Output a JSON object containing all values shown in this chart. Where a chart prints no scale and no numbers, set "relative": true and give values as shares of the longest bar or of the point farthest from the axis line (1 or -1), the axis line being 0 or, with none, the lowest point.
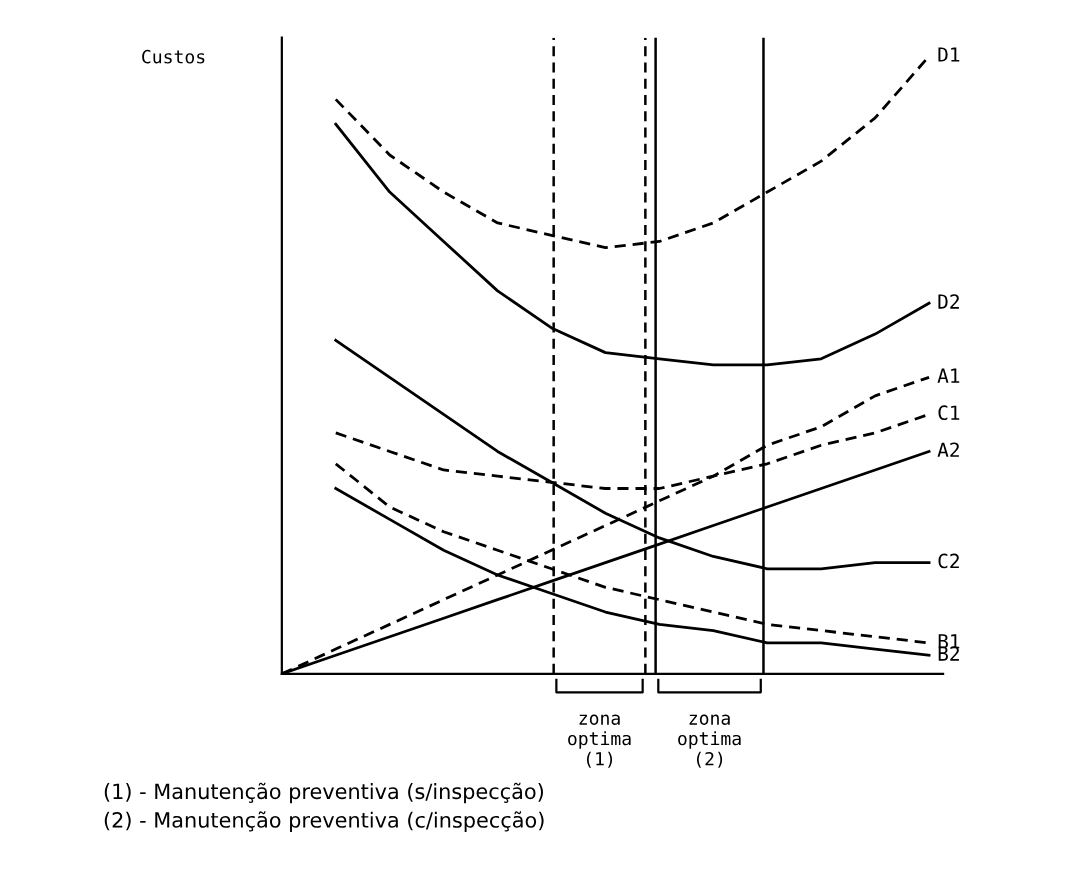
{
  "chart_data": {
    "type": "line",
    "relative": true,
    "ylabel": "Custos",
    "legend": false,
    "grid": false,
    "categories": [
      null,
      null,
      null,
      null,
      null,
      null,
      null,
      null,
      null,
      null,
      null,
      null,
      null
    ],
    "series": [
      {
        "name": "D1",
        "color": "#000000",
        "line_style": "dashed",
        "values": [
          null,
          0.93,
          0.84,
          0.78,
          0.73,
          0.71,
          0.69,
          0.7,
          0.73,
          0.78,
          0.83,
          0.9,
          1.0
        ]
      },
      {
        "name": "D2",
        "color": "#000000",
        "line_style": "solid",
        "values": [
          null,
          0.89,
          0.78,
          0.7,
          0.62,
          0.56,
          0.52,
          0.51,
          0.5,
          0.5,
          0.51,
          0.55,
          0.6
        ]
      },
      {
        "name": "A1",
        "color": "#000000",
        "line_style": "dashed",
        "values": [
          0,
          0.04,
          0.08,
          0.12,
          0.16,
          0.2,
          0.24,
          0.28,
          0.32,
          0.37,
          0.4,
          0.45,
          0.48
        ]
      },
      {
        "name": "C1",
        "color": "#000000",
        "line_style": "dashed",
        "values": [
          null,
          0.39,
          0.36,
          0.33,
          0.32,
          0.31,
          0.3,
          0.3,
          0.32,
          0.34,
          0.37,
          0.39,
          0.42
        ]
      },
      {
        "name": "A2",
        "color": "#000000",
        "line_style": "solid",
        "values": [
          0,
          0.03,
          0.06,
          0.09,
          0.12,
          0.15,
          0.18,
          0.21,
          0.24,
          0.27,
          0.3,
          0.33,
          0.36
        ]
      },
      {
        "name": "C2",
        "color": "#000000",
        "line_style": "solid",
        "values": [
          null,
          0.54,
          0.48,
          0.42,
          0.36,
          0.31,
          0.26,
          0.22,
          0.19,
          0.17,
          0.17,
          0.18,
          0.18
        ]
      },
      {
        "name": "B1",
        "color": "#000000",
        "line_style": "dashed",
        "values": [
          null,
          0.34,
          0.27,
          0.23,
          0.2,
          0.17,
          0.14,
          0.12,
          0.1,
          0.08,
          0.07,
          0.06,
          0.05
        ]
      },
      {
        "name": "B2",
        "color": "#000000",
        "line_style": "solid",
        "values": [
          null,
          0.3,
          0.25,
          0.2,
          0.16,
          0.13,
          0.1,
          0.08,
          0.07,
          0.05,
          0.05,
          0.04,
          0.03
        ]
      }
    ],
    "annotations": [
      "zona\noptima\n(1)",
      "zona\noptima\n(2)",
      "(1) - Manutenção preventiva (s/inspecção)",
      "(2) - Manutenção preventiva (c/inspecção)"
    ]
  }
}
